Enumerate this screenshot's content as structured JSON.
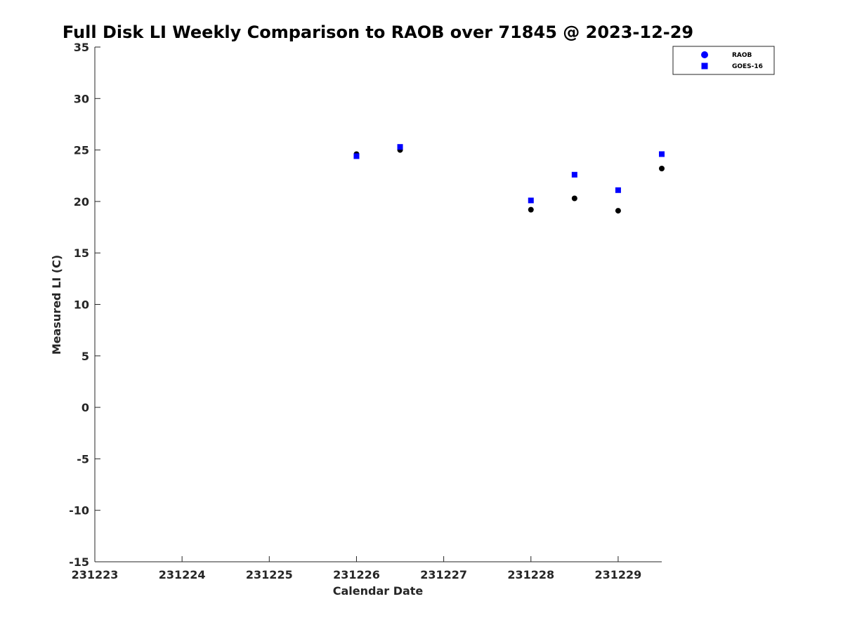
{
  "chart_data": {
    "type": "scatter",
    "title": "Full Disk LI Weekly Comparison to RAOB over 71845 @ 2023-12-29",
    "xlabel": "Calendar Date",
    "ylabel": "Measured LI (C)",
    "xlim": [
      "2023-12-23",
      "2023-12-29 12:00"
    ],
    "ylim": [
      -15,
      35
    ],
    "x_ticks": [
      {
        "date": "2023-12-23",
        "label": "231223"
      },
      {
        "date": "2023-12-24",
        "label": "231224"
      },
      {
        "date": "2023-12-25",
        "label": "231225"
      },
      {
        "date": "2023-12-26",
        "label": "231226"
      },
      {
        "date": "2023-12-27",
        "label": "231227"
      },
      {
        "date": "2023-12-28",
        "label": "231228"
      },
      {
        "date": "2023-12-29",
        "label": "231229"
      }
    ],
    "y_ticks": [
      35,
      30,
      25,
      20,
      15,
      10,
      5,
      0,
      -5,
      -10,
      -15
    ],
    "grid": false,
    "legend_position": "top-right",
    "series": [
      {
        "name": "RAOB",
        "marker": "circle",
        "color": "#000000",
        "legend_color": "#0000ff",
        "points": [
          {
            "x": "2023-12-26 00:00",
            "y": 24.6
          },
          {
            "x": "2023-12-26 12:00",
            "y": 25.0
          },
          {
            "x": "2023-12-28 00:00",
            "y": 19.2
          },
          {
            "x": "2023-12-28 12:00",
            "y": 20.3
          },
          {
            "x": "2023-12-29 00:00",
            "y": 19.1
          },
          {
            "x": "2023-12-29 12:00",
            "y": 23.2
          }
        ]
      },
      {
        "name": "GOES-16",
        "marker": "square",
        "color": "#0000ff",
        "legend_color": "#0000ff",
        "points": [
          {
            "x": "2023-12-26 00:00",
            "y": 24.4
          },
          {
            "x": "2023-12-26 12:00",
            "y": 25.3
          },
          {
            "x": "2023-12-28 00:00",
            "y": 20.1
          },
          {
            "x": "2023-12-28 12:00",
            "y": 22.6
          },
          {
            "x": "2023-12-29 00:00",
            "y": 21.1
          },
          {
            "x": "2023-12-29 12:00",
            "y": 24.6
          }
        ]
      }
    ]
  }
}
